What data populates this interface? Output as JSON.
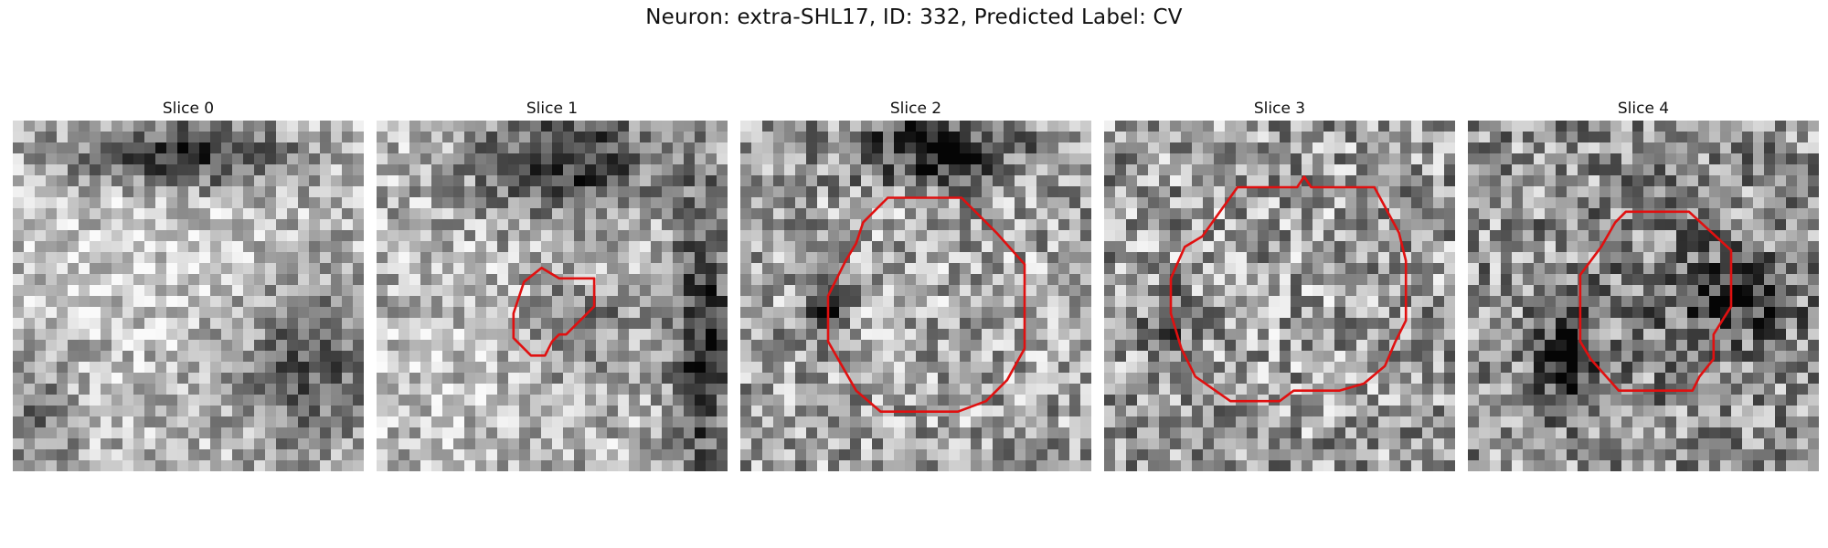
{
  "figure": {
    "title": "Neuron: extra-SHL17, ID: 332, Predicted Label: CV",
    "grid_size": 32,
    "outline_color": "#e01010",
    "panels": [
      {
        "title": "Slice 0",
        "image": "grayscale EM micrograph patch, bright granular field with dark band at top-center and dark region at lower-right",
        "contour": "none"
      },
      {
        "title": "Slice 1",
        "image": "grayscale EM micrograph patch, dark blob at top and dark vertical band at right edge",
        "contour": "small irregular outline near center-left"
      },
      {
        "title": "Slice 2",
        "image": "grayscale EM micrograph patch, round textured cell body with dark spots on left rim",
        "contour": "large octagonal outline around cell body"
      },
      {
        "title": "Slice 3",
        "image": "grayscale EM micrograph patch, round textured cell body filling most of the view",
        "contour": "large octagonal outline around cell body"
      },
      {
        "title": "Slice 4",
        "image": "grayscale EM micrograph patch, darker textured region with dark patches lower-left",
        "contour": "medium octagonal outline right of center"
      }
    ]
  }
}
